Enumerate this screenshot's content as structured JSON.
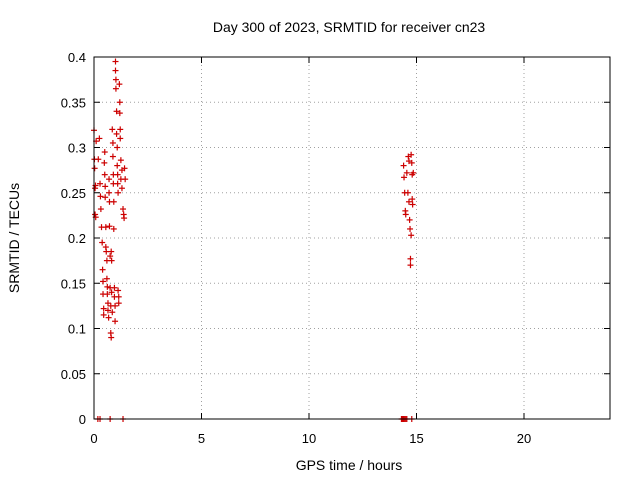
{
  "chart_data": {
    "type": "scatter",
    "title": "Day 300 of 2023, SRMTID for receiver cn23",
    "xlabel": "GPS time / hours",
    "ylabel": "SRMTID / TECUs",
    "xlim": [
      0,
      24
    ],
    "ylim": [
      0,
      0.4
    ],
    "xticks": [
      0,
      5,
      10,
      15,
      20
    ],
    "xtick_labels": [
      "0",
      "5",
      "10",
      "15",
      "20"
    ],
    "yticks": [
      0,
      0.05,
      0.1,
      0.15,
      0.2,
      0.25,
      0.3,
      0.35,
      0.4
    ],
    "ytick_labels": [
      "0",
      "0.05",
      "0.1",
      "0.15",
      "0.2",
      "0.25",
      "0.3",
      "0.35",
      "0.4"
    ],
    "grid": true,
    "marker": "+",
    "color": "#cc0000",
    "series": [
      {
        "name": "cn23",
        "points": [
          [
            0.0,
            0.319
          ],
          [
            0.02,
            0.287
          ],
          [
            0.03,
            0.277
          ],
          [
            0.05,
            0.255
          ],
          [
            0.05,
            0.226
          ],
          [
            0.07,
            0.258
          ],
          [
            0.08,
            0.223
          ],
          [
            0.1,
            0.307
          ],
          [
            0.2,
            0.287
          ],
          [
            0.25,
            0.31
          ],
          [
            0.28,
            0.26
          ],
          [
            0.3,
            0.246
          ],
          [
            0.32,
            0.232
          ],
          [
            0.35,
            0.212
          ],
          [
            0.38,
            0.195
          ],
          [
            0.4,
            0.165
          ],
          [
            0.42,
            0.152
          ],
          [
            0.42,
            0.138
          ],
          [
            0.45,
            0.122
          ],
          [
            0.45,
            0.115
          ],
          [
            0.48,
            0.283
          ],
          [
            0.5,
            0.295
          ],
          [
            0.5,
            0.27
          ],
          [
            0.52,
            0.257
          ],
          [
            0.52,
            0.245
          ],
          [
            0.55,
            0.212
          ],
          [
            0.55,
            0.19
          ],
          [
            0.57,
            0.185
          ],
          [
            0.6,
            0.175
          ],
          [
            0.6,
            0.155
          ],
          [
            0.62,
            0.146
          ],
          [
            0.62,
            0.138
          ],
          [
            0.65,
            0.128
          ],
          [
            0.65,
            0.12
          ],
          [
            0.68,
            0.112
          ],
          [
            0.7,
            0.265
          ],
          [
            0.7,
            0.25
          ],
          [
            0.72,
            0.24
          ],
          [
            0.72,
            0.213
          ],
          [
            0.75,
            0.18
          ],
          [
            0.75,
            0.145
          ],
          [
            0.78,
            0.125
          ],
          [
            0.78,
            0.095
          ],
          [
            0.8,
            0.09
          ],
          [
            0.8,
            0.185
          ],
          [
            0.82,
            0.175
          ],
          [
            0.82,
            0.14
          ],
          [
            0.85,
            0.118
          ],
          [
            0.85,
            0.32
          ],
          [
            0.88,
            0.305
          ],
          [
            0.88,
            0.29
          ],
          [
            0.9,
            0.27
          ],
          [
            0.9,
            0.26
          ],
          [
            0.92,
            0.24
          ],
          [
            0.92,
            0.21
          ],
          [
            0.95,
            0.145
          ],
          [
            0.95,
            0.135
          ],
          [
            0.98,
            0.125
          ],
          [
            0.98,
            0.108
          ],
          [
            1.0,
            0.395
          ],
          [
            1.0,
            0.385
          ],
          [
            1.02,
            0.375
          ],
          [
            1.02,
            0.365
          ],
          [
            1.05,
            0.34
          ],
          [
            1.05,
            0.315
          ],
          [
            1.08,
            0.3
          ],
          [
            1.08,
            0.28
          ],
          [
            1.1,
            0.27
          ],
          [
            1.1,
            0.26
          ],
          [
            1.12,
            0.25
          ],
          [
            1.12,
            0.142
          ],
          [
            1.15,
            0.135
          ],
          [
            1.15,
            0.128
          ],
          [
            1.18,
            0.37
          ],
          [
            1.2,
            0.35
          ],
          [
            1.2,
            0.338
          ],
          [
            1.22,
            0.32
          ],
          [
            1.22,
            0.31
          ],
          [
            1.25,
            0.286
          ],
          [
            1.25,
            0.265
          ],
          [
            1.3,
            0.275
          ],
          [
            1.3,
            0.255
          ],
          [
            1.35,
            0.232
          ],
          [
            1.38,
            0.226
          ],
          [
            1.4,
            0.222
          ],
          [
            1.42,
            0.277
          ],
          [
            1.45,
            0.265
          ],
          [
            14.4,
            0.28
          ],
          [
            14.42,
            0.267
          ],
          [
            14.45,
            0.25
          ],
          [
            14.48,
            0.23
          ],
          [
            14.5,
            0.226
          ],
          [
            14.55,
            0.272
          ],
          [
            14.6,
            0.25
          ],
          [
            14.62,
            0.29
          ],
          [
            14.65,
            0.285
          ],
          [
            14.65,
            0.24
          ],
          [
            14.68,
            0.22
          ],
          [
            14.7,
            0.21
          ],
          [
            14.72,
            0.177
          ],
          [
            14.72,
            0.17
          ],
          [
            14.75,
            0.203
          ],
          [
            14.75,
            0.292
          ],
          [
            14.78,
            0.283
          ],
          [
            14.8,
            0.27
          ],
          [
            14.8,
            0.243
          ],
          [
            14.82,
            0.237
          ],
          [
            14.85,
            0.272
          ],
          [
            0.18,
            0.0
          ],
          [
            0.28,
            0.0
          ],
          [
            0.75,
            0.0
          ],
          [
            1.35,
            0.0
          ],
          [
            14.3,
            0.0
          ],
          [
            14.35,
            0.0
          ],
          [
            14.4,
            0.0
          ],
          [
            14.45,
            0.0
          ],
          [
            14.5,
            0.0
          ],
          [
            14.55,
            0.0
          ],
          [
            14.78,
            0.0
          ]
        ]
      }
    ]
  }
}
